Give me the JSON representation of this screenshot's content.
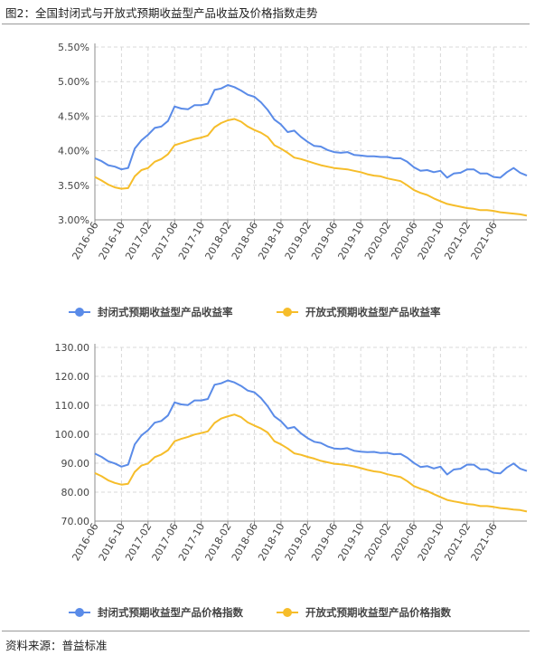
{
  "figure": {
    "title": "图2：全国封闭式与开放式预期收益型产品收益及价格指数走势",
    "source": "资料来源：普益标准"
  },
  "colors": {
    "closed": "#5a8be8",
    "open": "#f6bd2a",
    "grid": "#d9d9d9",
    "axis": "#8c8c8c"
  },
  "chart_data": [
    {
      "type": "line",
      "ylim": [
        3.0,
        5.5
      ],
      "yticks": [
        "3.00%",
        "3.50%",
        "4.00%",
        "4.50%",
        "5.00%",
        "5.50%"
      ],
      "xticks": [
        "2016-06",
        "2016-10",
        "2017-02",
        "2017-06",
        "2017-10",
        "2018-02",
        "2018-06",
        "2018-10",
        "2019-02",
        "2019-06",
        "2019-10",
        "2020-02",
        "2020-06",
        "2020-10",
        "2021-02",
        "2021-06"
      ],
      "legend_position": "bottom",
      "series": [
        {
          "name": "封闭式预期收益型产品收益率",
          "values": [
            3.89,
            3.85,
            3.79,
            3.77,
            3.73,
            3.75,
            4.03,
            4.15,
            4.23,
            4.33,
            4.35,
            4.43,
            4.64,
            4.61,
            4.6,
            4.66,
            4.66,
            4.68,
            4.88,
            4.9,
            4.95,
            4.92,
            4.87,
            4.81,
            4.78,
            4.7,
            4.59,
            4.45,
            4.38,
            4.27,
            4.29,
            4.2,
            4.13,
            4.07,
            4.06,
            4.01,
            3.98,
            3.97,
            3.98,
            3.94,
            3.93,
            3.92,
            3.92,
            3.91,
            3.91,
            3.89,
            3.89,
            3.84,
            3.76,
            3.71,
            3.72,
            3.69,
            3.71,
            3.61,
            3.67,
            3.68,
            3.73,
            3.73,
            3.67,
            3.67,
            3.62,
            3.61,
            3.69,
            3.75,
            3.68,
            3.64
          ]
        },
        {
          "name": "开放式预期收益型产品收益率",
          "values": [
            3.62,
            3.57,
            3.51,
            3.47,
            3.45,
            3.46,
            3.63,
            3.72,
            3.75,
            3.84,
            3.88,
            3.95,
            4.08,
            4.11,
            4.14,
            4.17,
            4.19,
            4.22,
            4.34,
            4.4,
            4.44,
            4.46,
            4.42,
            4.35,
            4.3,
            4.26,
            4.2,
            4.08,
            4.03,
            3.97,
            3.9,
            3.88,
            3.85,
            3.82,
            3.79,
            3.77,
            3.75,
            3.74,
            3.73,
            3.71,
            3.69,
            3.66,
            3.64,
            3.63,
            3.6,
            3.58,
            3.56,
            3.5,
            3.43,
            3.39,
            3.36,
            3.31,
            3.27,
            3.23,
            3.21,
            3.19,
            3.17,
            3.16,
            3.14,
            3.14,
            3.13,
            3.11,
            3.1,
            3.09,
            3.08,
            3.06
          ]
        }
      ]
    },
    {
      "type": "line",
      "ylim": [
        70,
        130
      ],
      "yticks": [
        "70.00",
        "80.00",
        "90.00",
        "100.00",
        "110.00",
        "120.00",
        "130.00"
      ],
      "xticks": [
        "2016-06",
        "2016-10",
        "2017-02",
        "2017-06",
        "2017-10",
        "2018-02",
        "2018-06",
        "2018-10",
        "2019-02",
        "2019-06",
        "2019-10",
        "2020-02",
        "2020-06",
        "2020-10",
        "2021-02",
        "2021-06"
      ],
      "legend_position": "bottom",
      "series": [
        {
          "name": "封闭式预期收益型产品价格指数",
          "values": [
            93.3,
            92.2,
            90.7,
            89.9,
            88.8,
            89.5,
            96.5,
            99.6,
            101.4,
            104.0,
            104.6,
            106.5,
            111.0,
            110.3,
            110.1,
            111.7,
            111.7,
            112.2,
            117.1,
            117.6,
            118.6,
            117.9,
            116.7,
            115.1,
            114.5,
            112.5,
            109.7,
            106.2,
            104.5,
            102.0,
            102.5,
            100.3,
            98.7,
            97.4,
            97.0,
            95.8,
            95.1,
            94.9,
            95.2,
            94.3,
            94.0,
            93.8,
            93.9,
            93.5,
            93.6,
            93.1,
            93.2,
            91.9,
            90.1,
            88.7,
            89.0,
            88.2,
            88.8,
            86.1,
            87.8,
            88.1,
            89.5,
            89.5,
            87.9,
            87.9,
            86.7,
            86.5,
            88.5,
            89.9,
            88.1,
            87.3
          ]
        },
        {
          "name": "开放式预期收益型产品价格指数",
          "values": [
            86.6,
            85.5,
            84.1,
            83.2,
            82.6,
            82.9,
            87.0,
            89.2,
            89.9,
            92.1,
            93.0,
            94.5,
            97.6,
            98.4,
            99.1,
            99.9,
            100.4,
            101.0,
            103.9,
            105.4,
            106.2,
            106.8,
            105.9,
            104.1,
            103.0,
            102.0,
            100.6,
            97.6,
            96.5,
            95.1,
            93.4,
            92.9,
            92.2,
            91.6,
            90.8,
            90.3,
            89.8,
            89.6,
            89.3,
            88.9,
            88.3,
            87.7,
            87.2,
            86.9,
            86.2,
            85.7,
            85.2,
            83.8,
            82.1,
            81.2,
            80.4,
            79.3,
            78.3,
            77.3,
            76.8,
            76.4,
            75.9,
            75.7,
            75.2,
            75.2,
            74.9,
            74.5,
            74.3,
            74.0,
            73.8,
            73.3
          ]
        }
      ]
    }
  ]
}
